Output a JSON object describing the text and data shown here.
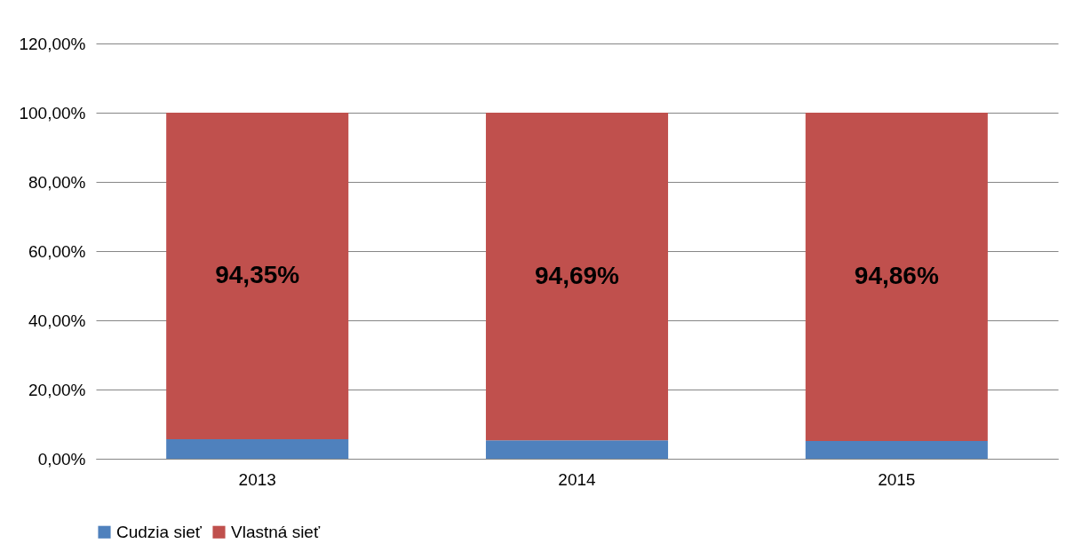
{
  "chart_data": {
    "type": "bar",
    "stacked": true,
    "categories": [
      "2013",
      "2014",
      "2015"
    ],
    "series": [
      {
        "name": "Cudzia sieť",
        "color": "#4f81bd",
        "values": [
          5.65,
          5.31,
          5.14
        ]
      },
      {
        "name": "Vlastná sieť",
        "color": "#c0504d",
        "values": [
          94.35,
          94.69,
          94.86
        ],
        "value_labels": [
          "94,35%",
          "94,69%",
          "94,86%"
        ]
      }
    ],
    "ylim": [
      0,
      120
    ],
    "yticks": [
      {
        "value": 0,
        "label": "0,00%"
      },
      {
        "value": 20,
        "label": "20,00%"
      },
      {
        "value": 40,
        "label": "40,00%"
      },
      {
        "value": 60,
        "label": "60,00%"
      },
      {
        "value": 80,
        "label": "80,00%"
      },
      {
        "value": 100,
        "label": "100,00%"
      },
      {
        "value": 120,
        "label": "120,00%"
      }
    ],
    "grid": "y",
    "legend": "bottom"
  }
}
